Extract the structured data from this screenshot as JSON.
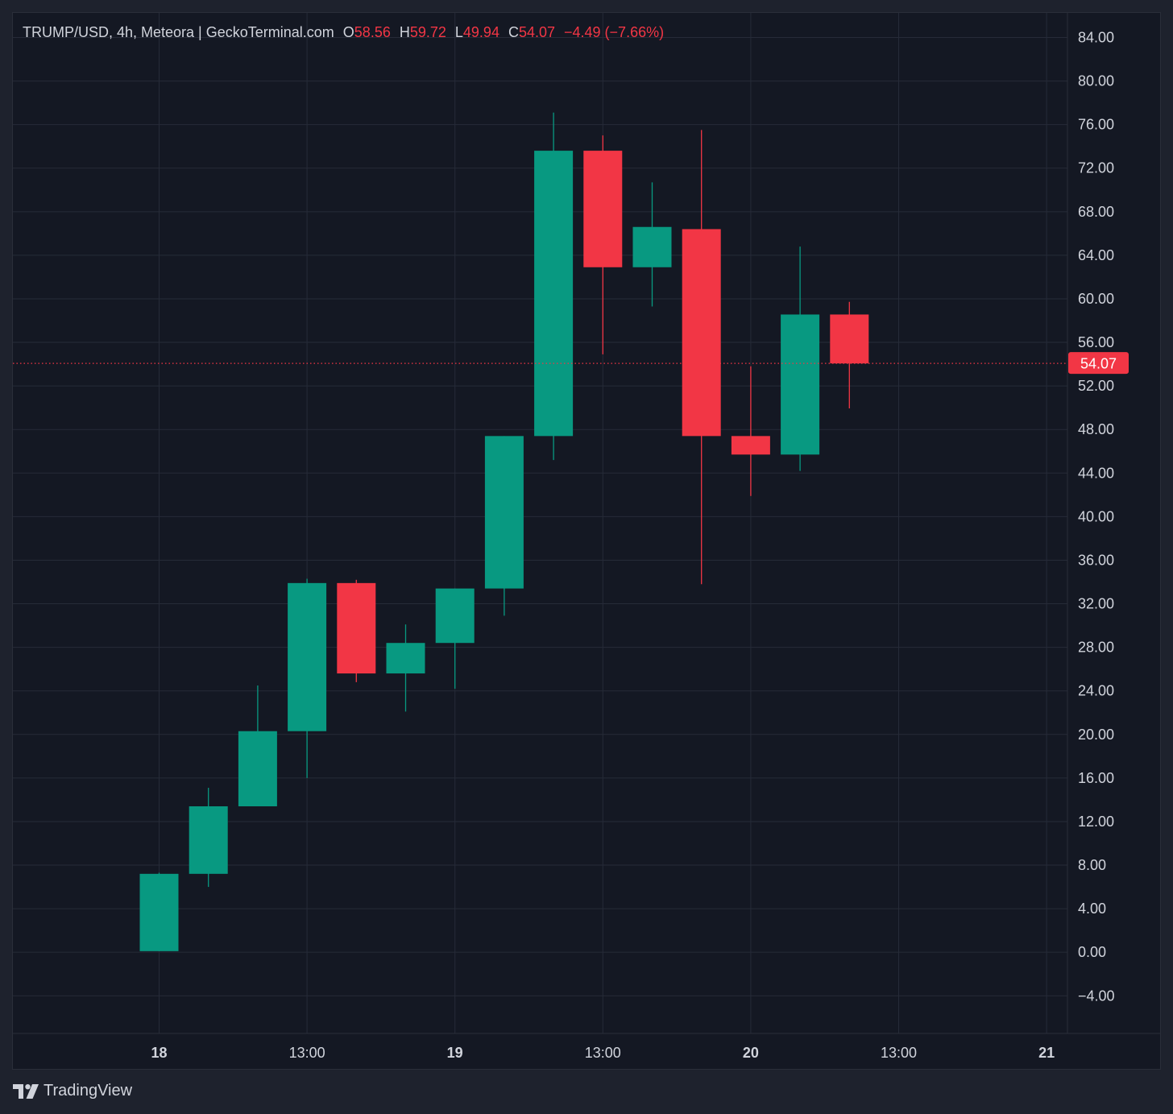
{
  "legend": {
    "symbol": "TRUMP/USD, 4h, Meteora | GeckoTerminal.com",
    "o_label": "O",
    "o_value": "58.56",
    "h_label": "H",
    "h_value": "59.72",
    "l_label": "L",
    "l_value": "49.94",
    "c_label": "C",
    "c_value": "54.07",
    "change": "−4.49 (−7.66%)"
  },
  "brand": {
    "name": "TradingView",
    "icon": "tradingview-logo-icon"
  },
  "colors": {
    "background": "#141823",
    "up": "#089981",
    "down": "#f23645",
    "grid": "#262b38",
    "text": "#d1d4dc"
  },
  "chart_data": {
    "type": "candlestick",
    "title": "TRUMP/USD, 4h, Meteora | GeckoTerminal.com",
    "xlabel": "",
    "ylabel": "",
    "ylim": [
      -7.5,
      86.5
    ],
    "grid": true,
    "y_ticks": [
      "84.00",
      "80.00",
      "76.00",
      "72.00",
      "68.00",
      "64.00",
      "60.00",
      "56.00",
      "52.00",
      "48.00",
      "44.00",
      "40.00",
      "36.00",
      "32.00",
      "28.00",
      "24.00",
      "20.00",
      "16.00",
      "12.00",
      "8.00",
      "4.00",
      "0.00",
      "−4.00"
    ],
    "y_tick_values": [
      84,
      80,
      76,
      72,
      68,
      64,
      60,
      56,
      52,
      48,
      44,
      40,
      36,
      32,
      28,
      24,
      20,
      16,
      12,
      8,
      4,
      0,
      -4
    ],
    "x_ticks": [
      {
        "label": "18",
        "t": 0,
        "bold": true
      },
      {
        "label": "13:00",
        "t": 3,
        "bold": false
      },
      {
        "label": "19",
        "t": 6,
        "bold": true
      },
      {
        "label": "13:00",
        "t": 9,
        "bold": false
      },
      {
        "label": "20",
        "t": 12,
        "bold": true
      },
      {
        "label": "13:00",
        "t": 15,
        "bold": false
      },
      {
        "label": "21",
        "t": 18,
        "bold": true
      }
    ],
    "candles": [
      {
        "t": 0,
        "open": 0.1,
        "high": 7.3,
        "low": 0.1,
        "close": 7.2
      },
      {
        "t": 1,
        "open": 7.2,
        "high": 15.1,
        "low": 6.0,
        "close": 13.4
      },
      {
        "t": 2,
        "open": 13.4,
        "high": 24.5,
        "low": 13.4,
        "close": 20.3
      },
      {
        "t": 3,
        "open": 20.3,
        "high": 34.3,
        "low": 16.0,
        "close": 33.9
      },
      {
        "t": 4,
        "open": 33.9,
        "high": 34.2,
        "low": 24.8,
        "close": 25.6
      },
      {
        "t": 5,
        "open": 25.6,
        "high": 30.1,
        "low": 22.1,
        "close": 28.4
      },
      {
        "t": 6,
        "open": 28.4,
        "high": 33.4,
        "low": 24.2,
        "close": 33.4
      },
      {
        "t": 7,
        "open": 33.4,
        "high": 47.4,
        "low": 30.9,
        "close": 47.4
      },
      {
        "t": 8,
        "open": 47.4,
        "high": 77.1,
        "low": 45.2,
        "close": 73.6
      },
      {
        "t": 9,
        "open": 73.6,
        "high": 75.0,
        "low": 54.9,
        "close": 62.9
      },
      {
        "t": 10,
        "open": 62.9,
        "high": 70.7,
        "low": 59.3,
        "close": 66.6
      },
      {
        "t": 11,
        "open": 66.4,
        "high": 75.5,
        "low": 33.8,
        "close": 47.4
      },
      {
        "t": 12,
        "open": 47.4,
        "high": 53.8,
        "low": 41.9,
        "close": 45.7
      },
      {
        "t": 13,
        "open": 45.7,
        "high": 64.8,
        "low": 44.2,
        "close": 58.56
      },
      {
        "t": 14,
        "open": 58.56,
        "high": 59.72,
        "low": 49.94,
        "close": 54.07
      }
    ],
    "last_price": 54.07,
    "last_price_label": "54.07"
  }
}
